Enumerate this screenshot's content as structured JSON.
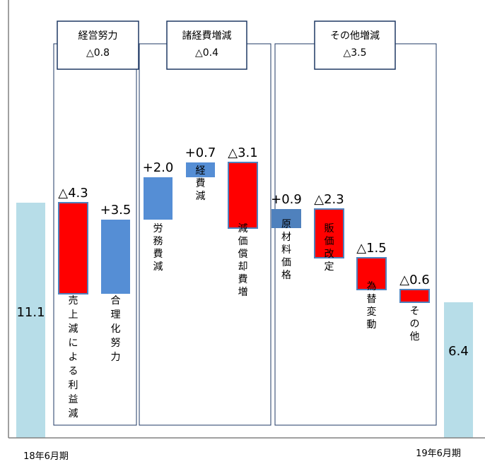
{
  "chart_data": {
    "type": "bar",
    "subtype": "waterfall",
    "start": {
      "label": "18年6月期",
      "value": 11.1,
      "display": "11.1"
    },
    "end": {
      "label": "19年6月期",
      "value": 6.4,
      "display": "6.4"
    },
    "groups": [
      {
        "title": "経営努力",
        "total": "△0.8",
        "items": [
          0,
          1
        ]
      },
      {
        "title": "諸経費増減",
        "total": "△0.4",
        "items": [
          2,
          3,
          4
        ]
      },
      {
        "title": "その他増減",
        "total": "△3.5",
        "items": [
          5,
          6,
          7,
          8
        ]
      }
    ],
    "steps": [
      {
        "label": "売上減による利益減",
        "value": -4.3,
        "display": "△4.3",
        "color": "#ff0000"
      },
      {
        "label": "合理化努力",
        "value": 3.5,
        "display": "+3.5",
        "color": "#558ed5"
      },
      {
        "label": "労務費減",
        "value": 2.0,
        "display": "+2.0",
        "color": "#558ed5"
      },
      {
        "label": "経費減",
        "value": 0.7,
        "display": "+0.7",
        "color": "#558ed5"
      },
      {
        "label": "減価償却費増",
        "value": -3.1,
        "display": "△3.1",
        "color": "#ff0000"
      },
      {
        "label": "原材料価格",
        "value": 0.9,
        "display": "+0.9",
        "color": "#4f81bd"
      },
      {
        "label": "販価改定",
        "value": -2.3,
        "display": "△2.3",
        "color": "#ff0000"
      },
      {
        "label": "為替変動",
        "value": -1.5,
        "display": "△1.5",
        "color": "#ff0000"
      },
      {
        "label": "その他",
        "value": -0.6,
        "display": "△0.6",
        "color": "#ff0000"
      }
    ],
    "colors": {
      "endpoint": "#b7dde8",
      "increase": "#558ed5",
      "decrease": "#ff0000",
      "box_border": "#1f3864"
    }
  }
}
